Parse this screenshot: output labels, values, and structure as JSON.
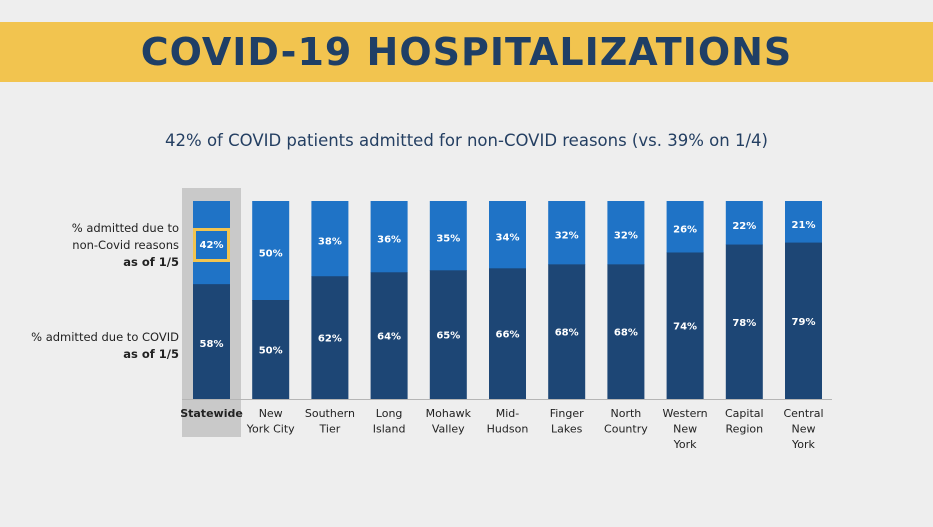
{
  "title": "COVID-19 HOSPITALIZATIONS",
  "subtitle": "42% of COVID patients admitted for non-COVID reasons (vs. 39% on 1/4)",
  "legend": {
    "top": {
      "line1": "% admitted due to",
      "line2": "non-Covid reasons",
      "line3": "as of 1/5"
    },
    "bottom": {
      "line1": "% admitted due to COVID",
      "line2": "as of 1/5"
    }
  },
  "colors": {
    "non_covid": "#1f73c6",
    "covid": "#1d4675",
    "highlight_bg": "#c9c9c9",
    "highlight_box": "#f2c44f",
    "banner": "#f2c44f"
  },
  "chart_data": {
    "type": "bar",
    "stacked": true,
    "orientation": "vertical",
    "ylim": [
      0,
      100
    ],
    "highlight_category": "Statewide",
    "categories": [
      [
        "Statewide"
      ],
      [
        "New",
        "York City"
      ],
      [
        "Southern",
        "Tier"
      ],
      [
        "Long",
        "Island"
      ],
      [
        "Mohawk",
        "Valley"
      ],
      [
        "Mid-",
        "Hudson"
      ],
      [
        "Finger",
        "Lakes"
      ],
      [
        "North",
        "Country"
      ],
      [
        "Western",
        "New",
        "York"
      ],
      [
        "Capital",
        "Region"
      ],
      [
        "Central",
        "New",
        "York"
      ]
    ],
    "series": [
      {
        "key": "covid",
        "values": [
          58,
          50,
          62,
          64,
          65,
          66,
          68,
          68,
          74,
          78,
          79
        ]
      },
      {
        "key": "non_covid",
        "values": [
          42,
          50,
          38,
          36,
          35,
          34,
          32,
          32,
          26,
          22,
          21
        ]
      }
    ],
    "value_labels": {
      "covid": [
        "58%",
        "50%",
        "62%",
        "64%",
        "65%",
        "66%",
        "68%",
        "68%",
        "74%",
        "78%",
        "79%"
      ],
      "non_covid": [
        "42%",
        "50%",
        "38%",
        "36%",
        "35%",
        "34%",
        "32%",
        "32%",
        "26%",
        "22%",
        "21%"
      ]
    }
  }
}
